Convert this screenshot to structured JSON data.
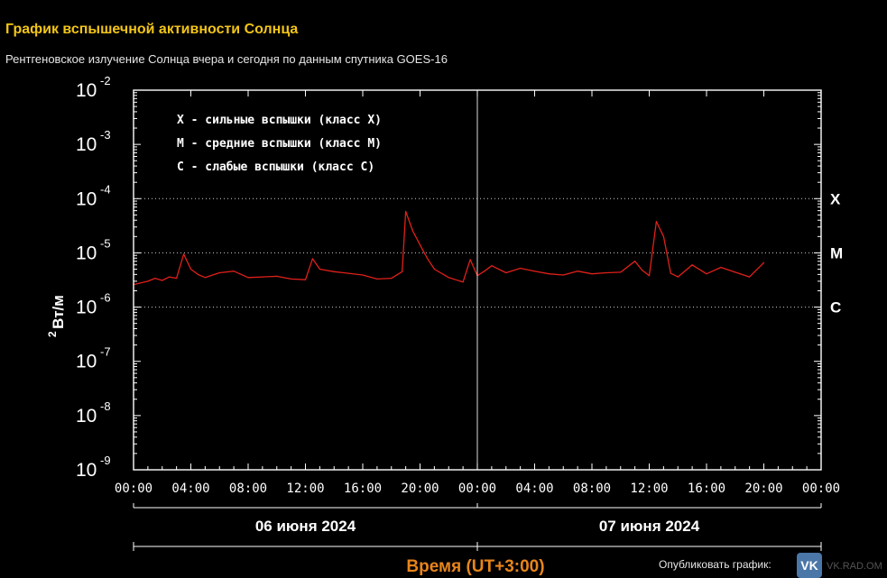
{
  "header": {
    "title": "График вспышечной активности Солнца",
    "subtitle": "Рентгеновское излучение Солнца вчера и сегодня по данным спутника GOES-16"
  },
  "footer": {
    "publish_label": "Опубликовать график:",
    "vk_icon_text": "VK",
    "vk_tail_text": "VK.RAD.OM"
  },
  "colors": {
    "background": "#000000",
    "title": "#f2c518",
    "series": "#e0201a",
    "axis_title": "#e8851a",
    "frame": "#ffffff"
  },
  "chart_data": {
    "type": "line",
    "title": "График вспышечной активности Солнца",
    "subtitle": "Рентгеновское излучение Солнца вчера и сегодня по данным спутника GOES-16",
    "xlabel": "Время (UT+3:00)",
    "ylabel_base": "Вт/м",
    "ylabel_exp": "2",
    "yscale": "log",
    "ylim": [
      1e-09,
      0.01
    ],
    "xlim": [
      "2024-06-06 00:00",
      "2024-06-08 00:00"
    ],
    "xticks": [
      "00:00",
      "04:00",
      "08:00",
      "12:00",
      "16:00",
      "20:00",
      "00:00",
      "04:00",
      "08:00",
      "12:00",
      "16:00",
      "20:00",
      "00:00"
    ],
    "yticks": [
      {
        "base": "10",
        "exp": "-2"
      },
      {
        "base": "10",
        "exp": "-3"
      },
      {
        "base": "10",
        "exp": "-4"
      },
      {
        "base": "10",
        "exp": "-5"
      },
      {
        "base": "10",
        "exp": "-6"
      },
      {
        "base": "10",
        "exp": "-7"
      },
      {
        "base": "10",
        "exp": "-8"
      },
      {
        "base": "10",
        "exp": "-9"
      }
    ],
    "day_labels": [
      "06 июня 2024",
      "07 июня 2024"
    ],
    "class_levels": [
      {
        "label": "X",
        "value": 0.0001
      },
      {
        "label": "M",
        "value": 1e-05
      },
      {
        "label": "C",
        "value": 1e-06
      }
    ],
    "legend": [
      "X  - сильные вспышки (класс X)",
      "M  - средние вспышки (класс M)",
      "C  - слабые вспышки (класс C)"
    ],
    "legend_placement": "top-left",
    "grid": "dotted at class levels",
    "series": [
      {
        "x": [
          "2024-06-06 00:00",
          "2024-06-06 01:00",
          "2024-06-06 01:30",
          "2024-06-06 02:00",
          "2024-06-06 02:30",
          "2024-06-06 03:00",
          "2024-06-06 03:30",
          "2024-06-06 04:00",
          "2024-06-06 04:30",
          "2024-06-06 05:00",
          "2024-06-06 06:00",
          "2024-06-06 07:00",
          "2024-06-06 08:00",
          "2024-06-06 09:00",
          "2024-06-06 10:00",
          "2024-06-06 11:00",
          "2024-06-06 12:00",
          "2024-06-06 12:30",
          "2024-06-06 13:00",
          "2024-06-06 14:00",
          "2024-06-06 15:00",
          "2024-06-06 16:00",
          "2024-06-06 17:00",
          "2024-06-06 18:00",
          "2024-06-06 18:45",
          "2024-06-06 19:00",
          "2024-06-06 19:30",
          "2024-06-06 20:00",
          "2024-06-06 20:30",
          "2024-06-06 21:00",
          "2024-06-06 22:00",
          "2024-06-06 23:00",
          "2024-06-06 23:30",
          "2024-06-07 00:00",
          "2024-06-07 00:30",
          "2024-06-07 01:00",
          "2024-06-07 02:00",
          "2024-06-07 03:00",
          "2024-06-07 04:00",
          "2024-06-07 05:00",
          "2024-06-07 06:00",
          "2024-06-07 07:00",
          "2024-06-07 08:00",
          "2024-06-07 09:00",
          "2024-06-07 10:00",
          "2024-06-07 11:00",
          "2024-06-07 11:30",
          "2024-06-07 12:00",
          "2024-06-07 12:30",
          "2024-06-07 13:00",
          "2024-06-07 13:30",
          "2024-06-07 14:00",
          "2024-06-07 15:00",
          "2024-06-07 16:00",
          "2024-06-07 17:00",
          "2024-06-07 18:00",
          "2024-06-07 19:00",
          "2024-06-07 20:00"
        ],
        "values": [
          2.6e-06,
          3e-06,
          3.4e-06,
          3.1e-06,
          3.6e-06,
          3.4e-06,
          9.5e-06,
          5e-06,
          4e-06,
          3.5e-06,
          4.3e-06,
          4.6e-06,
          3.5e-06,
          3.6e-06,
          3.7e-06,
          3.3e-06,
          3.2e-06,
          7.8e-06,
          5e-06,
          4.5e-06,
          4.2e-06,
          3.9e-06,
          3.3e-06,
          3.4e-06,
          4.5e-06,
          5.8e-05,
          2.5e-05,
          1.4e-05,
          8e-06,
          5e-06,
          3.5e-06,
          2.9e-06,
          7.5e-06,
          3.8e-06,
          4.6e-06,
          5.8e-06,
          4.3e-06,
          5.2e-06,
          4.6e-06,
          4.1e-06,
          3.9e-06,
          4.6e-06,
          4.1e-06,
          4.3e-06,
          4.4e-06,
          7e-06,
          4.8e-06,
          3.8e-06,
          3.8e-05,
          2e-05,
          4.2e-06,
          3.6e-06,
          6e-06,
          4.1e-06,
          5.4e-06,
          4.4e-06,
          3.6e-06,
          6.6e-06
        ]
      }
    ]
  }
}
